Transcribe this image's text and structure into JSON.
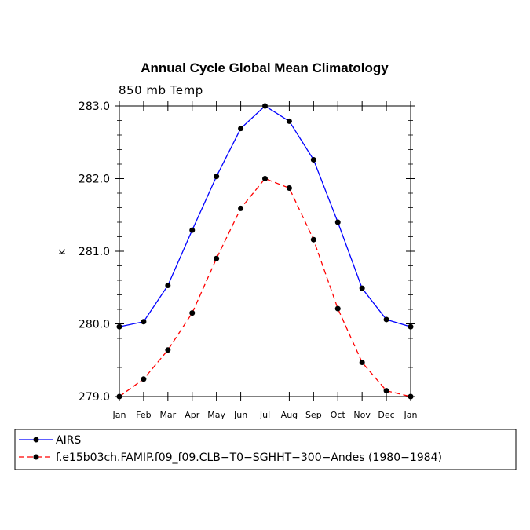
{
  "chart_data": {
    "type": "line",
    "title": "Annual Cycle Global Mean Climatology",
    "subtitle": "850 mb Temp",
    "xlabel": "",
    "ylabel": "K",
    "categories": [
      "Jan",
      "Feb",
      "Mar",
      "Apr",
      "May",
      "Jun",
      "Jul",
      "Aug",
      "Sep",
      "Oct",
      "Nov",
      "Dec",
      "Jan"
    ],
    "ylim": [
      279.0,
      283.0
    ],
    "yticks": [
      "279.0",
      "280.0",
      "281.0",
      "282.0",
      "283.0"
    ],
    "ytick_values": [
      279.0,
      280.0,
      281.0,
      282.0,
      283.0
    ],
    "grid": false,
    "legend_position": "bottom",
    "series": [
      {
        "name": "AIRS",
        "color": "#0000ff",
        "dash": "solid",
        "values": [
          279.96,
          280.03,
          280.53,
          281.29,
          282.03,
          282.69,
          283.0,
          282.79,
          282.26,
          281.4,
          280.49,
          280.06,
          279.96
        ]
      },
      {
        "name": "f.e15b03ch.FAMIP.f09_f09.CLB−T0−SGHHT−300−Andes (1980−1984)",
        "color": "#ff0000",
        "dash": "dashed",
        "values": [
          279.0,
          279.24,
          279.64,
          280.15,
          280.9,
          281.59,
          282.0,
          281.87,
          281.16,
          280.21,
          279.47,
          279.08,
          279.0
        ]
      }
    ]
  }
}
